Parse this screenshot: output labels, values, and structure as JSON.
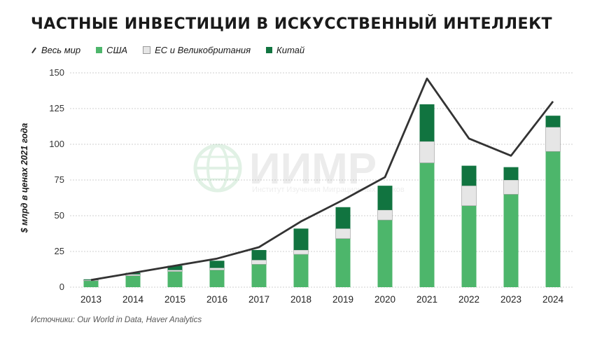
{
  "title": "Частные инвестиции в искусственный интеллект",
  "legend": {
    "world": "Весь мир",
    "usa": "США",
    "eu": "ЕС и Великобритания",
    "china": "Китай"
  },
  "colors": {
    "usa": "#4db66b",
    "eu": "#e6e6e6",
    "china": "#117440",
    "world": "#333333"
  },
  "watermark": {
    "big": "ИИМР",
    "small": "Институт Изучения Миграционных Рынков"
  },
  "source": "Источники: Our World in Data, Haver Analytics",
  "chart_data": {
    "type": "bar",
    "stacked": true,
    "title": "Частные инвестиции в искусственный интеллект",
    "ylabel": "$ млрд в ценах 2021 года",
    "xlabel": "",
    "ylim": [
      0,
      150
    ],
    "yticks": [
      "0",
      "25",
      "50",
      "75",
      "100",
      "125",
      "150"
    ],
    "grid": true,
    "legend_position": "top-left",
    "categories": [
      "2013",
      "2014",
      "2015",
      "2016",
      "2017",
      "2018",
      "2019",
      "2020",
      "2021",
      "2022",
      "2023",
      "2024"
    ],
    "series": [
      {
        "name": "США",
        "values": [
          4.5,
          8,
          11,
          12,
          16,
          23,
          34,
          47,
          87,
          57,
          65,
          95
        ]
      },
      {
        "name": "ЕС и Великобритания",
        "values": [
          0.5,
          1,
          1,
          1.5,
          3,
          3,
          7,
          7,
          15,
          14,
          10,
          17
        ]
      },
      {
        "name": "Китай",
        "values": [
          0.5,
          1,
          3,
          5,
          7,
          15,
          15,
          17,
          26,
          14,
          9,
          8
        ]
      }
    ],
    "line": {
      "name": "Весь мир",
      "values": [
        5,
        10,
        15,
        20,
        28,
        46,
        61,
        77,
        146,
        104,
        92,
        130
      ]
    }
  }
}
